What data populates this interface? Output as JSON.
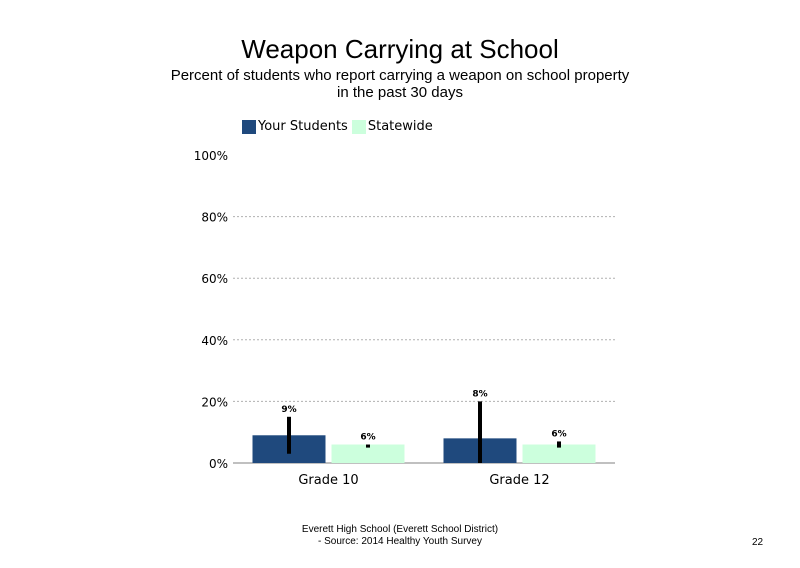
{
  "chart_data": {
    "type": "bar",
    "title": "Weapon Carrying at School",
    "subtitle": "Percent of students who report carrying a weapon on school property in the past 30 days",
    "categories": [
      "Grade 10",
      "Grade 12"
    ],
    "series": [
      {
        "name": "Your Students",
        "values": [
          9,
          8
        ],
        "labels": [
          "9%",
          "8%"
        ],
        "error": [
          [
            3,
            15
          ],
          [
            0,
            20
          ]
        ],
        "color": "#1f497d"
      },
      {
        "name": "Statewide",
        "values": [
          6,
          6
        ],
        "labels": [
          "6%",
          "6%"
        ],
        "error": [
          [
            5,
            6
          ],
          [
            5,
            7
          ]
        ],
        "color": "#ccffdd"
      }
    ],
    "ylim": [
      0,
      100
    ],
    "yticks": [
      "0%",
      "20%",
      "40%",
      "60%",
      "80%",
      "100%"
    ],
    "grid": true,
    "legend": "top-left"
  },
  "footer": {
    "line1": "Everett High School (Everett School District)",
    "line2": "- Source: 2014 Healthy Youth Survey"
  },
  "page_number": "22"
}
